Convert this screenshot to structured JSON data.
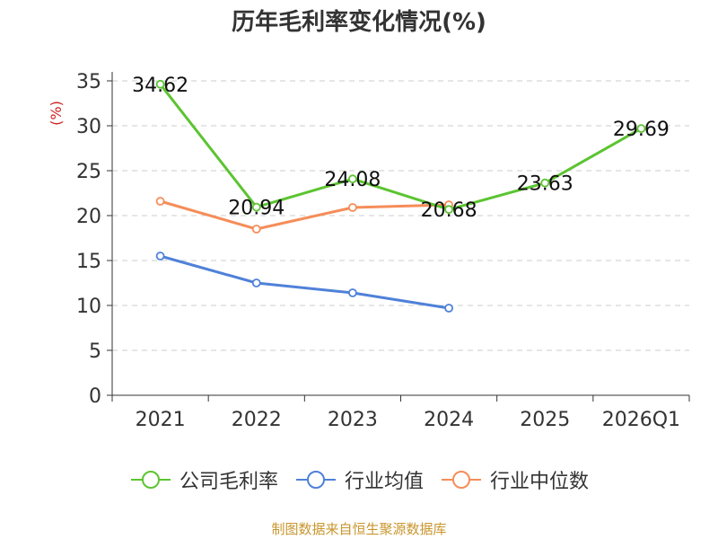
{
  "chart_data": {
    "type": "line",
    "title": "历年毛利率变化情况(%)",
    "ylabel": "(%)",
    "xlabel": "",
    "ylim": [
      0,
      35
    ],
    "yticks": [
      0,
      5,
      10,
      15,
      20,
      25,
      30,
      35
    ],
    "categories": [
      "2021",
      "2022",
      "2023",
      "2024",
      "2025",
      "2026Q1"
    ],
    "grid": true,
    "legend_position": "bottom",
    "series": [
      {
        "name": "公司毛利率",
        "color": "#5cc431",
        "values": [
          34.62,
          20.94,
          24.08,
          20.68,
          23.63,
          29.69
        ],
        "labels": [
          "34.62",
          "20.94",
          "24.08",
          "20.68",
          "23.63",
          "29.69"
        ]
      },
      {
        "name": "行业均值",
        "color": "#4f81d8",
        "values": [
          15.5,
          12.5,
          11.4,
          9.7,
          null,
          null
        ],
        "labels": null
      },
      {
        "name": "行业中位数",
        "color": "#f58d59",
        "values": [
          21.6,
          18.5,
          20.9,
          21.2,
          null,
          null
        ],
        "labels": null
      }
    ]
  },
  "source": "制图数据来自恒生聚源数据库"
}
